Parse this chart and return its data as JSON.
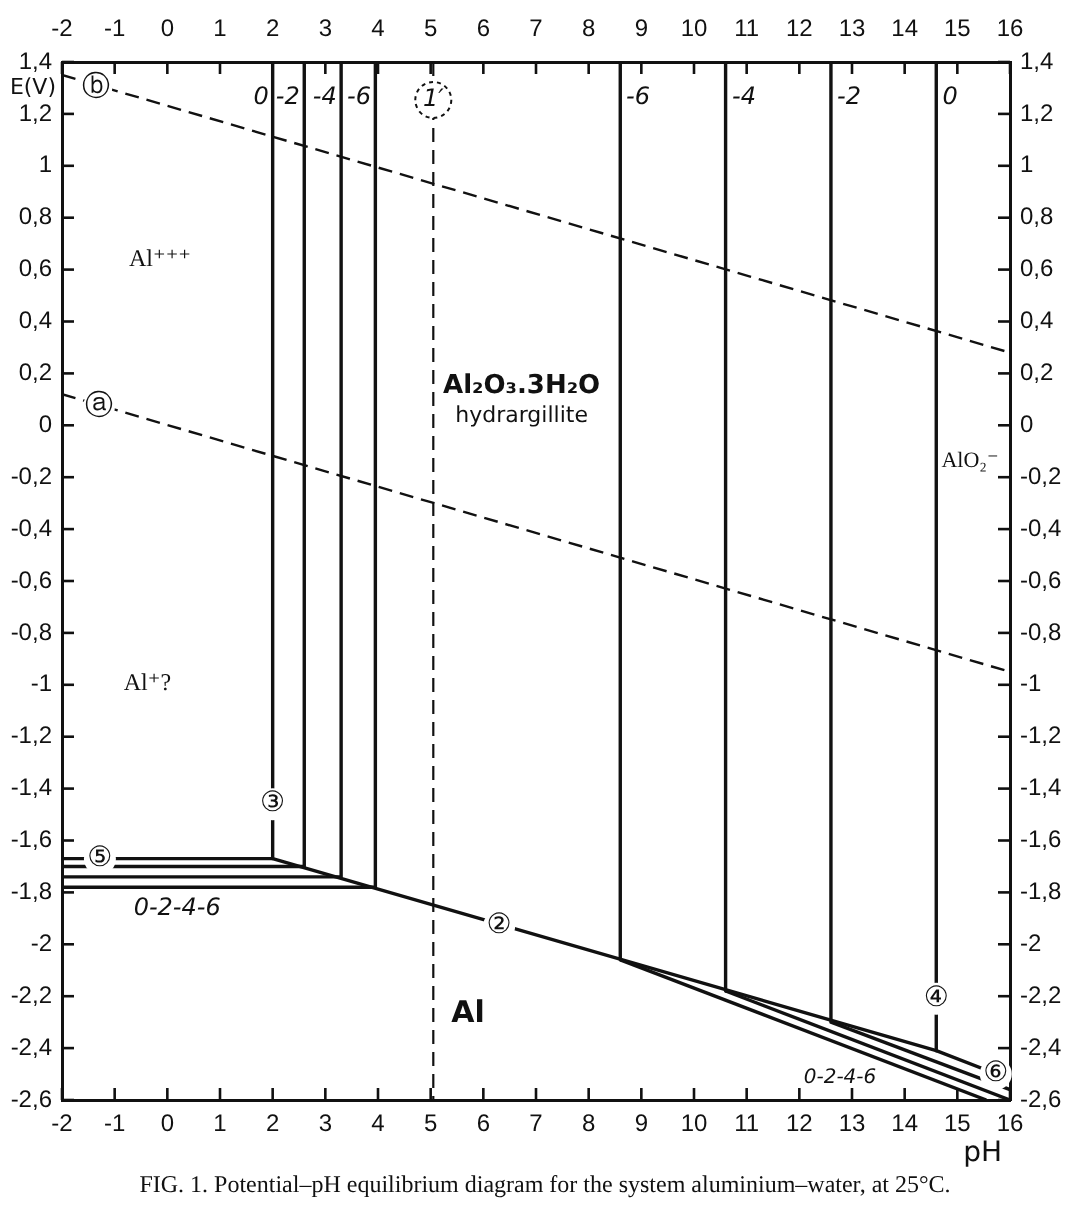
{
  "chart_data": {
    "type": "line",
    "xlabel": "pH",
    "ylabel": "E(V)",
    "xlim": [
      -2,
      16
    ],
    "xticks": [
      -2,
      -1,
      0,
      1,
      2,
      3,
      4,
      5,
      6,
      7,
      8,
      9,
      10,
      11,
      12,
      13,
      14,
      15,
      16
    ],
    "x2lim": [
      -2,
      16
    ],
    "x2ticks": [
      -2,
      -1,
      0,
      1,
      2,
      3,
      4,
      5,
      6,
      7,
      8,
      9,
      10,
      11,
      12,
      13,
      14,
      15,
      16
    ],
    "ylim": [
      -2.6,
      1.4
    ],
    "yticks": [
      {
        "value": 1.4,
        "label": "1,4"
      },
      {
        "value": 1.2,
        "label": "1,2"
      },
      1,
      {
        "value": 0.8,
        "label": "0,8"
      },
      {
        "value": 0.6,
        "label": "0,6"
      },
      {
        "value": 0.4,
        "label": "0,4"
      },
      {
        "value": 0.2,
        "label": "0,2"
      },
      0,
      {
        "value": -0.2,
        "label": "-0,2"
      },
      {
        "value": -0.4,
        "label": "-0,4"
      },
      {
        "value": -0.6,
        "label": "-0,6"
      },
      {
        "value": -0.8,
        "label": "-0,8"
      },
      -1,
      {
        "value": -1.2,
        "label": "-1,2"
      },
      {
        "value": -1.4,
        "label": "-1,4"
      },
      {
        "value": -1.6,
        "label": "-1,6"
      },
      {
        "value": -1.8,
        "label": "-1,8"
      },
      -2,
      {
        "value": -2.2,
        "label": "-2,2"
      },
      {
        "value": -2.4,
        "label": "-2,4"
      },
      {
        "value": -2.6,
        "label": "-2,6"
      }
    ],
    "y2lim": [
      -2.6,
      1.4
    ],
    "y2ticks": [
      {
        "value": 1.4,
        "label": "1,4"
      },
      {
        "value": 1.2,
        "label": "1,2"
      },
      1,
      {
        "value": 0.8,
        "label": "0,8"
      },
      {
        "value": 0.6,
        "label": "0,6"
      },
      {
        "value": 0.4,
        "label": "0,4"
      },
      {
        "value": 0.2,
        "label": "0,2"
      },
      0,
      {
        "value": -0.2,
        "label": "-0,2"
      },
      {
        "value": -0.4,
        "label": "-0,4"
      },
      {
        "value": -0.6,
        "label": "-0,6"
      },
      {
        "value": -0.8,
        "label": "-0,8"
      },
      -1,
      {
        "value": -1.2,
        "label": "-1,2"
      },
      {
        "value": -1.4,
        "label": "-1,4"
      },
      {
        "value": -1.6,
        "label": "-1,6"
      },
      {
        "value": -1.8,
        "label": "-1,8"
      },
      -2,
      {
        "value": -2.2,
        "label": "-2,2"
      },
      {
        "value": -2.4,
        "label": "-2,4"
      },
      {
        "value": -2.6,
        "label": "-2,6"
      }
    ],
    "grid": false,
    "legend": false,
    "marker": "none",
    "series": [
      {
        "color": "#111111",
        "line_style": "dashed",
        "x": [
          -2,
          16
        ],
        "values": [
          1.35,
          0.28
        ]
      },
      {
        "color": "#111111",
        "line_style": "dashed",
        "x": [
          -2,
          16
        ],
        "values": [
          0.12,
          -0.95
        ]
      },
      {
        "color": "#111111",
        "x": [
          2,
          2
        ],
        "values": [
          1.4,
          -1.67
        ]
      },
      {
        "color": "#111111",
        "x": [
          2.6,
          2.6
        ],
        "values": [
          1.4,
          -1.7
        ]
      },
      {
        "color": "#111111",
        "x": [
          3.3,
          3.3
        ],
        "values": [
          1.4,
          -1.74
        ]
      },
      {
        "color": "#111111",
        "x": [
          3.95,
          3.95
        ],
        "values": [
          1.4,
          -1.78
        ]
      },
      {
        "color": "#111111",
        "x": [
          -2,
          2,
          14.6,
          16
        ],
        "values": [
          -1.67,
          -1.67,
          -2.41,
          -2.52
        ]
      },
      {
        "color": "#111111",
        "x": [
          -2,
          2.6
        ],
        "values": [
          -1.7,
          -1.7
        ]
      },
      {
        "color": "#111111",
        "x": [
          -2,
          3.3
        ],
        "values": [
          -1.74,
          -1.74
        ]
      },
      {
        "color": "#111111",
        "x": [
          -2,
          3.95
        ],
        "values": [
          -1.78,
          -1.78
        ]
      },
      {
        "color": "#111111",
        "x": [
          8.6,
          8.6
        ],
        "values": [
          1.4,
          -2.06
        ]
      },
      {
        "color": "#111111",
        "x": [
          10.6,
          10.6
        ],
        "values": [
          1.4,
          -2.18
        ]
      },
      {
        "color": "#111111",
        "x": [
          12.6,
          12.6
        ],
        "values": [
          1.4,
          -2.3
        ]
      },
      {
        "color": "#111111",
        "x": [
          14.6,
          14.6
        ],
        "values": [
          1.4,
          -2.41
        ]
      },
      {
        "color": "#111111",
        "x": [
          12.6,
          16
        ],
        "values": [
          -2.3,
          -2.56
        ]
      },
      {
        "color": "#111111",
        "x": [
          10.6,
          16
        ],
        "values": [
          -2.18,
          -2.6
        ]
      },
      {
        "color": "#111111",
        "x": [
          8.6,
          15.55
        ],
        "values": [
          -2.06,
          -2.6
        ]
      }
    ],
    "ref_lines": [
      {
        "axis": "x",
        "value": 5.05,
        "label": "1′",
        "line_style": "dashed",
        "color": "#111111"
      }
    ],
    "annotations": [
      {
        "text": "ⓑ",
        "x": -1.35,
        "y": 1.3
      },
      {
        "text": "ⓐ",
        "x": -1.3,
        "y": 0.07
      },
      {
        "text": "③",
        "x": 2,
        "y": -1.46
      },
      {
        "text": "⑤",
        "x": -1.28,
        "y": -1.67
      },
      {
        "text": "②",
        "x": 6.3,
        "y": -1.93
      },
      {
        "text": "④",
        "x": 14.6,
        "y": -2.21
      },
      {
        "text": "⑥",
        "x": 15.73,
        "y": -2.5
      },
      "0",
      "-2",
      "-4",
      "-6",
      "-6",
      "-4",
      "-2",
      "0",
      "Al⁺⁺⁺",
      "Al₂O₃.3H₂O",
      "hydrargillite",
      "AlO₂⁻",
      "Al⁺?",
      "0-2-4-6",
      "Al",
      "0-2-4-6",
      "FIG. 1. Potential–pH equilibrium diagram for the system aluminium–water, at 25°C."
    ]
  }
}
